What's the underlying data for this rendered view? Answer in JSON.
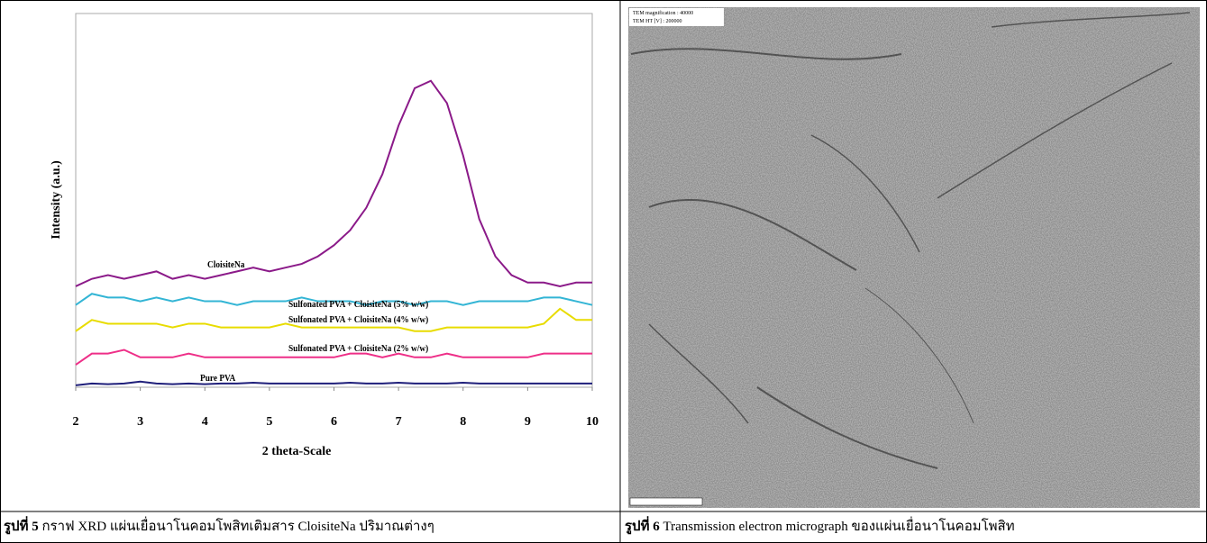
{
  "chart_data": {
    "type": "line",
    "x_label": "2 theta-Scale",
    "y_label": "Intensity (a.u.)",
    "x": [
      2,
      2.25,
      2.5,
      2.75,
      3,
      3.25,
      3.5,
      3.75,
      4,
      4.25,
      4.5,
      4.75,
      5,
      5.25,
      5.5,
      5.75,
      6,
      6.25,
      6.5,
      6.75,
      7,
      7.25,
      7.5,
      7.75,
      8,
      8.25,
      8.5,
      8.75,
      9,
      9.25,
      9.5,
      9.75,
      10
    ],
    "xlim": [
      2,
      10
    ],
    "xticks": [
      2,
      3,
      4,
      5,
      6,
      7,
      8,
      9,
      10
    ],
    "ylim": [
      0,
      100
    ],
    "grid": false,
    "series": [
      {
        "name": "CloisiteNa",
        "color": "#8b1a89",
        "values": [
          27,
          29,
          30,
          29,
          30,
          31,
          29,
          30,
          29,
          30,
          31,
          32,
          31,
          32,
          33,
          35,
          38,
          42,
          48,
          57,
          70,
          80,
          82,
          76,
          62,
          45,
          35,
          30,
          28,
          28,
          27,
          28,
          28
        ]
      },
      {
        "name": "Sulfonated PVA + CloisiteNa (5% w/w)",
        "color": "#33b5d5",
        "values": [
          22,
          25,
          24,
          24,
          23,
          24,
          23,
          24,
          23,
          23,
          22,
          23,
          23,
          23,
          24,
          23,
          23,
          23,
          22,
          23,
          23,
          22,
          23,
          23,
          22,
          23,
          23,
          23,
          23,
          24,
          24,
          23,
          22
        ]
      },
      {
        "name": "Sulfonated PVA + CloisiteNa (4% w/w)",
        "color": "#e8dc00",
        "values": [
          15,
          18,
          17,
          17,
          17,
          17,
          16,
          17,
          17,
          16,
          16,
          16,
          16,
          17,
          16,
          16,
          16,
          16,
          16,
          16,
          16,
          15,
          15,
          16,
          16,
          16,
          16,
          16,
          16,
          17,
          21,
          18,
          18
        ]
      },
      {
        "name": "Sulfonated PVA + CloisiteNa (2% w/w)",
        "color": "#ee2f88",
        "values": [
          6,
          9,
          9,
          10,
          8,
          8,
          8,
          9,
          8,
          8,
          8,
          8,
          8,
          8,
          8,
          8,
          8,
          9,
          9,
          8,
          9,
          8,
          8,
          9,
          8,
          8,
          8,
          8,
          8,
          9,
          9,
          9,
          9
        ]
      },
      {
        "name": "Pure PVA",
        "color": "#1f1f7a",
        "values": [
          0.5,
          1,
          0.8,
          1,
          1.5,
          1,
          0.8,
          1,
          0.8,
          1,
          1,
          1.2,
          1,
          1,
          1,
          1,
          1,
          1.2,
          1,
          1,
          1.2,
          1,
          1,
          1,
          1.2,
          1,
          1,
          1,
          1,
          1,
          1,
          1,
          1
        ]
      }
    ]
  },
  "figure_5": {
    "caption_label": "รูปที่ 5",
    "caption_text": "กราฟ XRD แผ่นเยื่อนาโนคอมโพสิทเติมสาร CloisiteNa ปริมาณต่างๆ"
  },
  "figure_6": {
    "info": [
      "TEM magnification : 40000",
      "TEM HT [V] : 200000"
    ],
    "caption_label": "รูปที่ 6",
    "caption_text": "Transmission electron micrograph ของแผ่นเยื่อนาโนคอมโพสิท"
  }
}
